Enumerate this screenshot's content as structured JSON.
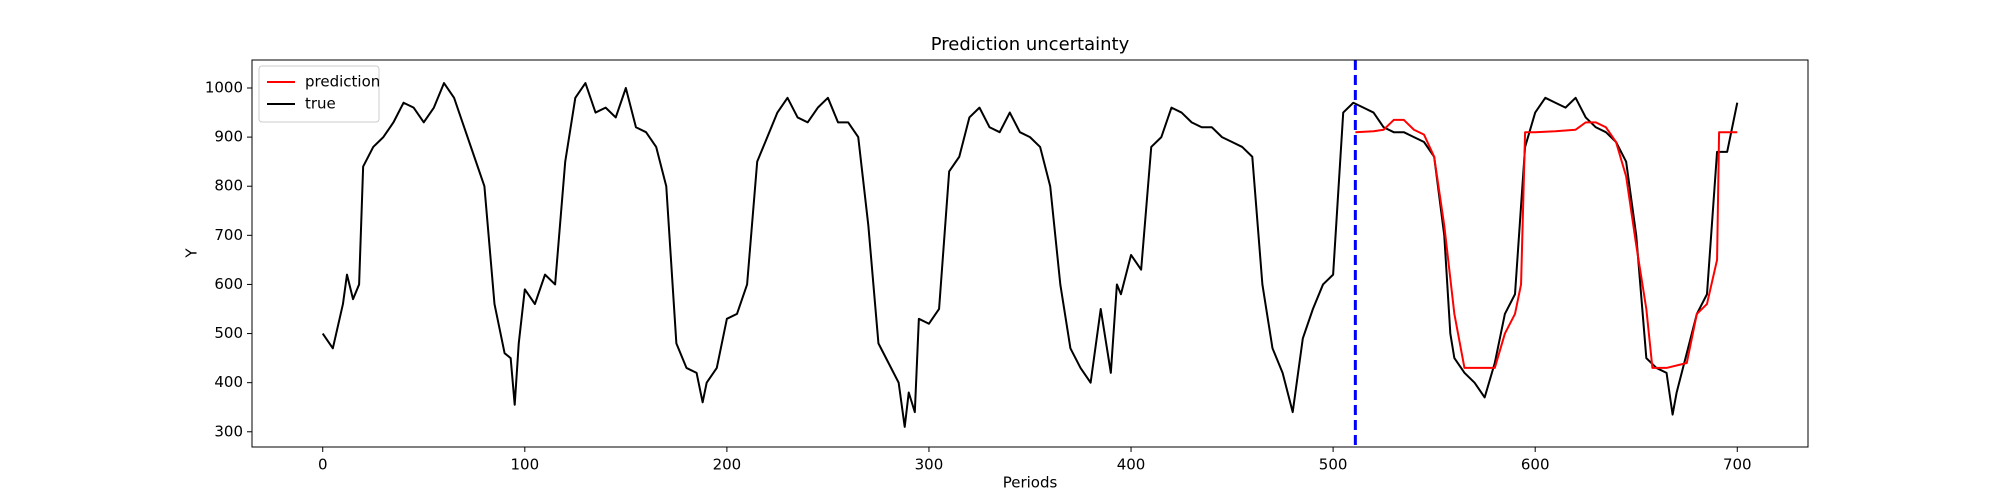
{
  "chart_data": {
    "type": "line",
    "title": "Prediction uncertainty",
    "x_label": "Periods",
    "y_label": "Y",
    "xlim": [
      -35,
      735
    ],
    "ylim": [
      269,
      1057
    ],
    "xticks": [
      0,
      100,
      200,
      300,
      400,
      500,
      600,
      700
    ],
    "yticks": [
      300,
      400,
      500,
      600,
      700,
      800,
      900,
      1000
    ],
    "legend": "upper left",
    "vline": {
      "x": 511,
      "color": "#0000ff"
    },
    "series": [
      {
        "name": "prediction",
        "color": "#ff0000",
        "x": [
          511,
          520,
          525,
          530,
          535,
          540,
          545,
          550,
          555,
          560,
          565,
          570,
          575,
          580,
          585,
          590,
          593,
          595,
          600,
          610,
          620,
          625,
          630,
          635,
          640,
          645,
          650,
          655,
          658,
          665,
          675,
          680,
          685,
          690,
          691,
          700
        ],
        "values": [
          910,
          912,
          915,
          935,
          935,
          915,
          905,
          860,
          720,
          540,
          430,
          430,
          430,
          430,
          500,
          540,
          600,
          910,
          910,
          912,
          915,
          930,
          930,
          920,
          890,
          820,
          680,
          550,
          430,
          430,
          440,
          540,
          560,
          650,
          910,
          910
        ]
      },
      {
        "name": "true",
        "color": "#000000",
        "x": [
          0,
          5,
          10,
          12,
          15,
          18,
          20,
          25,
          30,
          35,
          40,
          45,
          50,
          55,
          60,
          65,
          70,
          75,
          80,
          85,
          90,
          93,
          95,
          97,
          100,
          105,
          110,
          115,
          120,
          125,
          130,
          135,
          140,
          145,
          150,
          155,
          160,
          165,
          170,
          175,
          180,
          185,
          188,
          190,
          195,
          200,
          205,
          210,
          215,
          220,
          225,
          230,
          235,
          240,
          245,
          250,
          255,
          260,
          265,
          270,
          275,
          280,
          285,
          288,
          290,
          293,
          295,
          300,
          305,
          310,
          315,
          320,
          325,
          330,
          335,
          340,
          345,
          350,
          355,
          360,
          365,
          370,
          375,
          380,
          385,
          390,
          393,
          395,
          400,
          405,
          410,
          415,
          420,
          425,
          430,
          435,
          440,
          445,
          450,
          455,
          460,
          465,
          470,
          475,
          480,
          485,
          490,
          495,
          500,
          505,
          510,
          515,
          520,
          525,
          530,
          535,
          540,
          545,
          550,
          555,
          558,
          560,
          565,
          570,
          575,
          580,
          585,
          590,
          595,
          600,
          605,
          610,
          615,
          620,
          625,
          630,
          635,
          640,
          645,
          650,
          655,
          660,
          665,
          668,
          670,
          675,
          680,
          685,
          690,
          695,
          700
        ],
        "values": [
          500,
          470,
          560,
          620,
          570,
          600,
          840,
          880,
          900,
          930,
          970,
          960,
          930,
          960,
          1010,
          980,
          920,
          860,
          800,
          560,
          460,
          450,
          355,
          480,
          590,
          560,
          620,
          600,
          850,
          980,
          1010,
          950,
          960,
          940,
          1000,
          920,
          910,
          880,
          800,
          480,
          430,
          420,
          360,
          400,
          430,
          530,
          540,
          600,
          850,
          900,
          950,
          980,
          940,
          930,
          960,
          980,
          930,
          930,
          900,
          720,
          480,
          440,
          400,
          310,
          380,
          340,
          530,
          520,
          550,
          830,
          860,
          940,
          960,
          920,
          910,
          950,
          910,
          900,
          880,
          800,
          600,
          470,
          430,
          400,
          550,
          420,
          600,
          580,
          660,
          630,
          880,
          900,
          960,
          950,
          930,
          920,
          920,
          900,
          890,
          880,
          860,
          600,
          470,
          420,
          340,
          490,
          550,
          600,
          620,
          950,
          970,
          960,
          950,
          920,
          910,
          910,
          900,
          890,
          860,
          700,
          500,
          450,
          420,
          400,
          370,
          440,
          540,
          580,
          880,
          950,
          980,
          970,
          960,
          980,
          940,
          920,
          910,
          890,
          850,
          700,
          450,
          430,
          420,
          335,
          380,
          460,
          540,
          580,
          870,
          870,
          970
        ]
      }
    ]
  }
}
